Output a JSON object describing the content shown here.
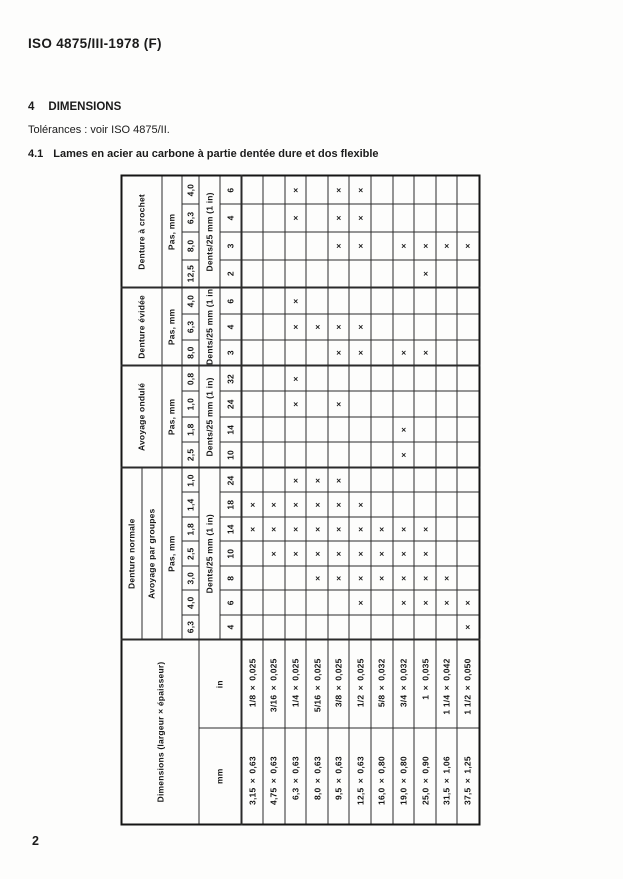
{
  "page": {
    "header": "ISO 4875/III-1978 (F)",
    "section": {
      "number": "4",
      "title": "DIMENSIONS"
    },
    "tolerances_note": "Tolérances : voir ISO 4875/II.",
    "subsection": {
      "number": "4.1",
      "title": "Lames en acier au carbone à partie dentée dure et dos flexible"
    },
    "page_number": "2"
  },
  "table": {
    "mark": "×",
    "dimensions_header": "Dimensions (largeur × épaisseur)",
    "unit_mm": "mm",
    "unit_in": "in",
    "pas_label": "Pas, mm",
    "dents_label": "Dents/25 mm (1 in)",
    "groups": [
      {
        "name": "Denture normale",
        "sub": "Avoyage par groupes",
        "pas": [
          "6,3",
          "4,0",
          "3,0",
          "2,5",
          "1,8",
          "1,4",
          "1,0"
        ],
        "dents": [
          "4",
          "6",
          "8",
          "10",
          "14",
          "18",
          "24"
        ]
      },
      {
        "name": "Avoyage ondulé",
        "pas": [
          "2,5",
          "1,8",
          "1,0",
          "0,8"
        ],
        "dents": [
          "10",
          "14",
          "24",
          "32"
        ]
      },
      {
        "name": "Denture évidée",
        "pas": [
          "8,0",
          "6,3",
          "4,0"
        ],
        "dents": [
          "3",
          "4",
          "6"
        ]
      },
      {
        "name": "Denture à crochet",
        "pas": [
          "12,5",
          "8,0",
          "6,3",
          "4,0"
        ],
        "dents": [
          "2",
          "3",
          "4",
          "6"
        ]
      }
    ],
    "rows": [
      {
        "mm": "3,15 × 0,63",
        "in": "1/8 × 0,025",
        "marks": [
          0,
          0,
          0,
          0,
          1,
          1,
          0,
          0,
          0,
          0,
          0,
          0,
          0,
          0,
          0,
          0,
          0,
          0
        ]
      },
      {
        "mm": "4,75 × 0,63",
        "in": "3/16 × 0,025",
        "marks": [
          0,
          0,
          0,
          1,
          1,
          1,
          0,
          0,
          0,
          0,
          0,
          0,
          0,
          0,
          0,
          0,
          0,
          0
        ]
      },
      {
        "mm": "6,3 × 0,63",
        "in": "1/4 × 0,025",
        "marks": [
          0,
          0,
          0,
          1,
          1,
          1,
          1,
          0,
          0,
          1,
          1,
          0,
          1,
          1,
          0,
          0,
          1,
          1
        ]
      },
      {
        "mm": "8,0 × 0,63",
        "in": "5/16 × 0,025",
        "marks": [
          0,
          0,
          1,
          1,
          1,
          1,
          1,
          0,
          0,
          0,
          0,
          0,
          1,
          0,
          0,
          0,
          0,
          0
        ]
      },
      {
        "mm": "9,5 × 0,63",
        "in": "3/8 × 0,025",
        "marks": [
          0,
          0,
          1,
          1,
          1,
          1,
          1,
          0,
          0,
          1,
          0,
          1,
          1,
          0,
          0,
          1,
          1,
          1
        ]
      },
      {
        "mm": "12,5 × 0,63",
        "in": "1/2 × 0,025",
        "marks": [
          0,
          1,
          1,
          1,
          1,
          1,
          0,
          0,
          0,
          0,
          0,
          1,
          1,
          0,
          0,
          1,
          1,
          1
        ]
      },
      {
        "mm": "16,0 × 0,80",
        "in": "5/8 × 0,032",
        "marks": [
          0,
          0,
          1,
          1,
          1,
          0,
          0,
          0,
          0,
          0,
          0,
          0,
          0,
          0,
          0,
          0,
          0,
          0
        ]
      },
      {
        "mm": "19,0 × 0,80",
        "in": "3/4 × 0,032",
        "marks": [
          0,
          1,
          1,
          1,
          1,
          0,
          0,
          1,
          1,
          0,
          0,
          1,
          0,
          0,
          0,
          1,
          0,
          0
        ]
      },
      {
        "mm": "25,0 × 0,90",
        "in": "1 × 0,035",
        "marks": [
          0,
          1,
          1,
          1,
          1,
          0,
          0,
          0,
          0,
          0,
          0,
          1,
          0,
          0,
          1,
          1,
          0,
          0
        ]
      },
      {
        "mm": "31,5 × 1,06",
        "in": "1 1/4 × 0,042",
        "marks": [
          0,
          1,
          1,
          0,
          0,
          0,
          0,
          0,
          0,
          0,
          0,
          0,
          0,
          0,
          0,
          1,
          0,
          0
        ]
      },
      {
        "mm": "37,5 × 1,25",
        "in": "1 1/2 × 0,050",
        "marks": [
          1,
          1,
          0,
          0,
          0,
          0,
          0,
          0,
          0,
          0,
          0,
          0,
          0,
          0,
          0,
          1,
          0,
          0
        ]
      }
    ]
  }
}
